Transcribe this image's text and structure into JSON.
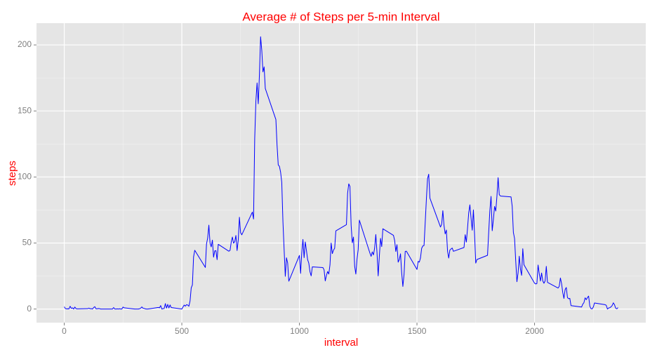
{
  "chart_data": {
    "type": "line",
    "title": "Average # of Steps per 5-min Interval",
    "x_label": "interval",
    "y_label": "steps",
    "xlim": [
      -118,
      2473
    ],
    "ylim": [
      -10.3,
      216.5
    ],
    "xticks": [
      0,
      500,
      1000,
      1500,
      2000
    ],
    "yticks": [
      0,
      50,
      100,
      150,
      200
    ],
    "x_minor_grid": [
      250,
      750,
      1250,
      1750,
      2250
    ],
    "y_minor_grid": [
      25,
      75,
      125,
      175
    ],
    "grid": true,
    "x": [
      0,
      5,
      10,
      15,
      20,
      25,
      30,
      35,
      40,
      45,
      50,
      55,
      100,
      105,
      110,
      115,
      120,
      125,
      130,
      135,
      140,
      145,
      150,
      155,
      200,
      205,
      210,
      215,
      220,
      225,
      230,
      235,
      240,
      245,
      250,
      255,
      300,
      305,
      310,
      315,
      320,
      325,
      330,
      335,
      340,
      345,
      350,
      355,
      400,
      405,
      410,
      415,
      420,
      425,
      430,
      435,
      440,
      445,
      450,
      455,
      500,
      505,
      510,
      515,
      520,
      525,
      530,
      535,
      540,
      545,
      550,
      555,
      600,
      605,
      610,
      615,
      620,
      625,
      630,
      635,
      640,
      645,
      650,
      655,
      700,
      705,
      710,
      715,
      720,
      725,
      730,
      735,
      740,
      745,
      750,
      755,
      800,
      805,
      810,
      815,
      820,
      825,
      830,
      835,
      840,
      845,
      850,
      855,
      900,
      905,
      910,
      915,
      920,
      925,
      930,
      935,
      940,
      945,
      950,
      955,
      1000,
      1005,
      1010,
      1015,
      1020,
      1025,
      1030,
      1035,
      1040,
      1045,
      1050,
      1055,
      1100,
      1105,
      1110,
      1115,
      1120,
      1125,
      1130,
      1135,
      1140,
      1145,
      1150,
      1155,
      1200,
      1205,
      1210,
      1215,
      1220,
      1225,
      1230,
      1235,
      1240,
      1245,
      1250,
      1255,
      1300,
      1305,
      1310,
      1315,
      1320,
      1325,
      1330,
      1335,
      1340,
      1345,
      1350,
      1355,
      1400,
      1405,
      1410,
      1415,
      1420,
      1425,
      1430,
      1435,
      1440,
      1445,
      1450,
      1455,
      1500,
      1505,
      1510,
      1515,
      1520,
      1525,
      1530,
      1535,
      1540,
      1545,
      1550,
      1555,
      1600,
      1605,
      1610,
      1615,
      1620,
      1625,
      1630,
      1635,
      1640,
      1645,
      1650,
      1655,
      1700,
      1705,
      1710,
      1715,
      1720,
      1725,
      1730,
      1735,
      1740,
      1745,
      1750,
      1755,
      1800,
      1805,
      1810,
      1815,
      1820,
      1825,
      1830,
      1835,
      1840,
      1845,
      1850,
      1855,
      1900,
      1905,
      1910,
      1915,
      1920,
      1925,
      1930,
      1935,
      1940,
      1945,
      1950,
      1955,
      2000,
      2005,
      2010,
      2015,
      2020,
      2025,
      2030,
      2035,
      2040,
      2045,
      2050,
      2055,
      2100,
      2105,
      2110,
      2115,
      2120,
      2125,
      2130,
      2135,
      2140,
      2145,
      2150,
      2155,
      2200,
      2205,
      2210,
      2215,
      2220,
      2225,
      2230,
      2235,
      2240,
      2245,
      2250,
      2255,
      2300,
      2305,
      2310,
      2315,
      2320,
      2325,
      2330,
      2335,
      2340,
      2345,
      2350,
      2355
    ],
    "series": [
      {
        "name": "steps",
        "color": "#0000ff",
        "values": [
          1.7,
          0.3,
          0.1,
          0.2,
          0.1,
          2.1,
          0.5,
          0.9,
          0,
          1.5,
          0.3,
          0.1,
          0.3,
          0.7,
          0.2,
          0.3,
          0,
          1.1,
          1.8,
          0.2,
          0.2,
          0.4,
          0.3,
          0,
          0,
          0,
          1.1,
          0,
          0,
          0.1,
          0,
          0.2,
          0,
          0,
          1.5,
          0.9,
          0,
          0,
          0,
          0,
          0.2,
          0.6,
          1.6,
          0.6,
          0.5,
          0.1,
          0,
          0,
          1.2,
          0.9,
          2.6,
          0,
          0.3,
          0.4,
          4.1,
          0.7,
          3.5,
          0.8,
          3.1,
          1.1,
          0,
          1.6,
          3,
          2.2,
          3.3,
          3,
          2.1,
          6.1,
          16,
          18.3,
          39.5,
          44.5,
          31.5,
          49.3,
          53.8,
          63.5,
          50,
          47.1,
          52.2,
          39.3,
          44,
          44.2,
          37.4,
          49,
          43.8,
          44.4,
          50.5,
          54.5,
          49.9,
          51,
          55.7,
          44.3,
          52.3,
          69.5,
          57.8,
          56.2,
          73.4,
          68.2,
          129.4,
          157.5,
          171.2,
          155.4,
          177.3,
          206.2,
          195.9,
          179.6,
          183.4,
          167,
          143.5,
          124,
          109.1,
          108.1,
          103.7,
          96,
          66.2,
          45.2,
          24.8,
          38.8,
          35,
          21.1,
          40.6,
          27,
          42.4,
          52.7,
          38.9,
          50.8,
          44.3,
          37.4,
          34.7,
          28.3,
          25.1,
          31.9,
          31.4,
          29.7,
          21.3,
          25.5,
          28.4,
          26.5,
          33.4,
          50,
          42,
          44.6,
          46,
          59.2,
          63.9,
          87.7,
          94.8,
          92.8,
          63.4,
          50.2,
          54.5,
          32.4,
          26.5,
          37.7,
          45.1,
          67.3,
          42.3,
          39.9,
          43.3,
          41,
          46.2,
          56.4,
          42.8,
          25.1,
          40,
          53.5,
          47.3,
          60.8,
          55.8,
          52,
          43.6,
          48.7,
          35.5,
          37.5,
          41.8,
          27.5,
          17.1,
          26.1,
          43.6,
          43.8,
          30,
          36.1,
          35.5,
          38.8,
          46,
          47.8,
          48.1,
          65.3,
          82.9,
          98.7,
          102.1,
          84,
          62.1,
          64.1,
          74.5,
          63.2,
          56.9,
          59.8,
          43.9,
          38.6,
          44.7,
          45.5,
          46.2,
          43.7,
          46.6,
          56.3,
          50.7,
          61.2,
          72.7,
          78.9,
          68.9,
          59.7,
          75.1,
          56.5,
          34.8,
          37.5,
          40.7,
          58,
          74.7,
          85.3,
          59.3,
          67.8,
          77.7,
          74.2,
          85.3,
          99.5,
          86.6,
          85.6,
          84.9,
          77.8,
          58,
          53.4,
          36.3,
          20.7,
          27.4,
          40,
          30.2,
          25.5,
          45.7,
          33.5,
          19.6,
          19,
          19.3,
          33.3,
          26.8,
          21.2,
          27.3,
          21.3,
          19.5,
          21.3,
          32.3,
          20.2,
          15.9,
          17.2,
          23.5,
          19.2,
          12.5,
          8,
          14.7,
          16.3,
          8.7,
          7.8,
          8.1,
          2.6,
          1.5,
          3.7,
          4.8,
          8.5,
          7.1,
          8.7,
          9.8,
          2.2,
          0.3,
          0.1,
          1.6,
          4.6,
          3.3,
          2.8,
          0,
          0.8,
          1,
          1.6,
          2.6,
          4.7,
          3.3,
          0.6,
          0.2,
          1.1
        ]
      }
    ]
  }
}
